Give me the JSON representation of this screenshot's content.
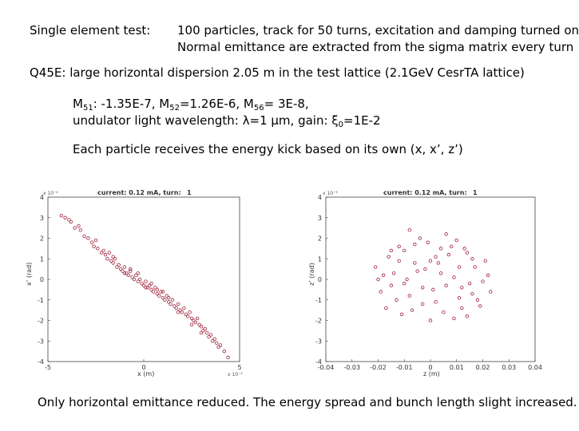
{
  "header": {
    "label": "Single element test:",
    "line1": "100 particles, track for 50 turns, excitation and damping turned on",
    "line2": "Normal emittance are extracted from the sigma matrix every turn"
  },
  "q45e": "Q45E: large horizontal dispersion 2.05 m in the test lattice (2.1GeV CesrTA lattice)",
  "matrix": {
    "m51_label": "M",
    "m51_sub": "51",
    "m51_value": ": -1.35E-7, ",
    "m52_label": "M",
    "m52_sub": "52",
    "m52_value": "=1.26E-6, ",
    "m56_label": "M",
    "m56_sub": "56",
    "m56_value": "= 3E-8,"
  },
  "undulator": {
    "prefix": "undulator light wavelength: ",
    "lambda_symbol": "λ",
    "lambda_value": "=1 ",
    "lambda_unit": "μm",
    "gain_prefix": ",  gain: ",
    "xi_symbol": "ξ",
    "xi_sub": "0",
    "xi_value": "=1E-2"
  },
  "kick_text": "Each particle receives the energy kick based on its own (x, x’, z’)",
  "conclusion": "Only horizontal emittance reduced. The energy spread and bunch length slight increased.",
  "colors": {
    "marker": "#a0203a",
    "axis": "#444444"
  },
  "chart_data": [
    {
      "type": "scatter",
      "title": "current: 0.12 mA, turn:",
      "turn": "1",
      "xlabel": "x (m)",
      "ylabel": "x’ (rad)",
      "x_exponent": "x 10⁻³",
      "y_exponent": "x 10⁻⁴",
      "xlim": [
        -5,
        5
      ],
      "ylim": [
        -4,
        4
      ],
      "xticks": [
        "-5",
        "0",
        "5"
      ],
      "yticks": [
        "4",
        "3",
        "2",
        "1",
        "0",
        "-1",
        "-2",
        "-3",
        "-4"
      ],
      "units_note": "x in 1e-3 m, x' in 1e-4 rad",
      "points": [
        [
          -4.3,
          3.1
        ],
        [
          -4.1,
          3.0
        ],
        [
          -3.8,
          2.8
        ],
        [
          -3.6,
          2.5
        ],
        [
          -3.3,
          2.4
        ],
        [
          -3.1,
          2.1
        ],
        [
          -3.4,
          2.6
        ],
        [
          -2.9,
          2.0
        ],
        [
          -2.7,
          1.8
        ],
        [
          -2.6,
          1.6
        ],
        [
          -2.5,
          1.9
        ],
        [
          -2.4,
          1.5
        ],
        [
          -2.2,
          1.3
        ],
        [
          -2.0,
          1.2
        ],
        [
          -1.9,
          1.0
        ],
        [
          -1.8,
          1.3
        ],
        [
          -1.7,
          0.9
        ],
        [
          -1.6,
          0.8
        ],
        [
          -1.5,
          1.0
        ],
        [
          -1.4,
          0.6
        ],
        [
          -1.3,
          0.7
        ],
        [
          -1.2,
          0.5
        ],
        [
          -1.1,
          0.4
        ],
        [
          -1.0,
          0.6
        ],
        [
          -0.9,
          0.3
        ],
        [
          -0.8,
          0.2
        ],
        [
          -0.7,
          0.4
        ],
        [
          -0.6,
          0.1
        ],
        [
          -0.5,
          0.0
        ],
        [
          -0.4,
          0.2
        ],
        [
          -0.3,
          -0.1
        ],
        [
          -0.2,
          0.0
        ],
        [
          -0.1,
          -0.2
        ],
        [
          0.0,
          -0.3
        ],
        [
          0.1,
          -0.1
        ],
        [
          0.2,
          -0.4
        ],
        [
          0.3,
          -0.3
        ],
        [
          0.4,
          -0.5
        ],
        [
          0.5,
          -0.6
        ],
        [
          0.6,
          -0.4
        ],
        [
          0.7,
          -0.7
        ],
        [
          0.8,
          -0.8
        ],
        [
          0.9,
          -0.6
        ],
        [
          1.0,
          -0.9
        ],
        [
          1.1,
          -1.0
        ],
        [
          1.2,
          -0.8
        ],
        [
          1.3,
          -1.1
        ],
        [
          1.4,
          -1.2
        ],
        [
          1.5,
          -1.0
        ],
        [
          1.6,
          -1.3
        ],
        [
          1.7,
          -1.4
        ],
        [
          1.8,
          -1.2
        ],
        [
          1.9,
          -1.5
        ],
        [
          2.0,
          -1.6
        ],
        [
          2.1,
          -1.4
        ],
        [
          2.2,
          -1.7
        ],
        [
          2.3,
          -1.8
        ],
        [
          2.4,
          -1.6
        ],
        [
          2.5,
          -1.9
        ],
        [
          2.6,
          -2.0
        ],
        [
          2.7,
          -2.1
        ],
        [
          2.8,
          -1.9
        ],
        [
          2.9,
          -2.2
        ],
        [
          3.0,
          -2.3
        ],
        [
          3.1,
          -2.5
        ],
        [
          3.2,
          -2.4
        ],
        [
          3.3,
          -2.6
        ],
        [
          3.4,
          -2.8
        ],
        [
          3.5,
          -2.7
        ],
        [
          3.6,
          -3.0
        ],
        [
          3.7,
          -2.9
        ],
        [
          3.8,
          -3.1
        ],
        [
          3.9,
          -3.3
        ],
        [
          4.0,
          -3.2
        ],
        [
          4.2,
          -3.5
        ],
        [
          4.4,
          -3.8
        ],
        [
          -3.9,
          2.9
        ],
        [
          -2.1,
          1.4
        ],
        [
          -1.0,
          0.3
        ],
        [
          0.4,
          -0.2
        ],
        [
          1.3,
          -0.9
        ],
        [
          2.5,
          -2.2
        ],
        [
          -0.3,
          0.3
        ],
        [
          0.7,
          -0.5
        ],
        [
          1.0,
          -0.6
        ],
        [
          -1.6,
          1.1
        ],
        [
          -0.7,
          0.5
        ],
        [
          0.1,
          -0.4
        ],
        [
          1.8,
          -1.6
        ],
        [
          3.0,
          -2.6
        ]
      ]
    },
    {
      "type": "scatter",
      "title": "current: 0.12 mA, turn:",
      "turn": "1",
      "xlabel": "z (m)",
      "ylabel": "z’ (rad)",
      "y_exponent": "x 10⁻³",
      "xlim": [
        -0.04,
        0.04
      ],
      "ylim": [
        -4,
        4
      ],
      "xticks": [
        "-0.04",
        "-0.03",
        "-0.02",
        "-0.01",
        "0",
        "0.01",
        "0.02",
        "0.03",
        "0.04"
      ],
      "yticks": [
        "4",
        "3",
        "2",
        "1",
        "0",
        "-1",
        "-2",
        "-3",
        "-4"
      ],
      "units_note": "z in m, z' in 1e-3 rad",
      "points": [
        [
          -0.021,
          0.6
        ],
        [
          -0.018,
          0.2
        ],
        [
          -0.015,
          -0.3
        ],
        [
          -0.012,
          0.9
        ],
        [
          -0.01,
          1.4
        ],
        [
          -0.008,
          -0.8
        ],
        [
          -0.005,
          0.4
        ],
        [
          -0.003,
          -1.2
        ],
        [
          -0.001,
          1.8
        ],
        [
          0.001,
          -0.5
        ],
        [
          0.003,
          0.8
        ],
        [
          0.005,
          -1.6
        ],
        [
          0.007,
          1.2
        ],
        [
          0.009,
          0.1
        ],
        [
          0.011,
          -0.9
        ],
        [
          0.013,
          1.5
        ],
        [
          0.015,
          -0.2
        ],
        [
          0.017,
          0.6
        ],
        [
          0.019,
          -1.3
        ],
        [
          0.021,
          0.9
        ],
        [
          0.023,
          -0.6
        ],
        [
          -0.016,
          1.1
        ],
        [
          -0.013,
          -1.0
        ],
        [
          -0.009,
          0.0
        ],
        [
          -0.006,
          1.7
        ],
        [
          -0.002,
          0.5
        ],
        [
          0.002,
          1.1
        ],
        [
          0.006,
          -0.3
        ],
        [
          0.01,
          1.9
        ],
        [
          0.014,
          -1.8
        ],
        [
          -0.019,
          -0.6
        ],
        [
          -0.011,
          -1.7
        ],
        [
          -0.004,
          2.0
        ],
        [
          0.004,
          0.3
        ],
        [
          0.008,
          1.6
        ],
        [
          0.012,
          -0.4
        ],
        [
          0.016,
          1.0
        ],
        [
          0.02,
          -0.1
        ],
        [
          -0.014,
          0.3
        ],
        [
          -0.007,
          -1.5
        ],
        [
          0.0,
          0.9
        ],
        [
          0.018,
          -1.0
        ],
        [
          -0.017,
          -1.4
        ],
        [
          -0.008,
          2.4
        ],
        [
          0.0,
          -2.0
        ],
        [
          0.006,
          2.2
        ],
        [
          0.011,
          0.6
        ],
        [
          -0.003,
          -0.4
        ],
        [
          0.009,
          -1.9
        ],
        [
          -0.012,
          1.6
        ],
        [
          0.014,
          1.3
        ],
        [
          -0.02,
          0.0
        ],
        [
          0.022,
          0.2
        ],
        [
          0.002,
          -1.1
        ],
        [
          -0.006,
          0.8
        ],
        [
          0.016,
          -0.7
        ],
        [
          -0.01,
          -0.2
        ],
        [
          0.004,
          1.5
        ],
        [
          0.012,
          -1.4
        ],
        [
          -0.015,
          1.4
        ]
      ]
    }
  ]
}
